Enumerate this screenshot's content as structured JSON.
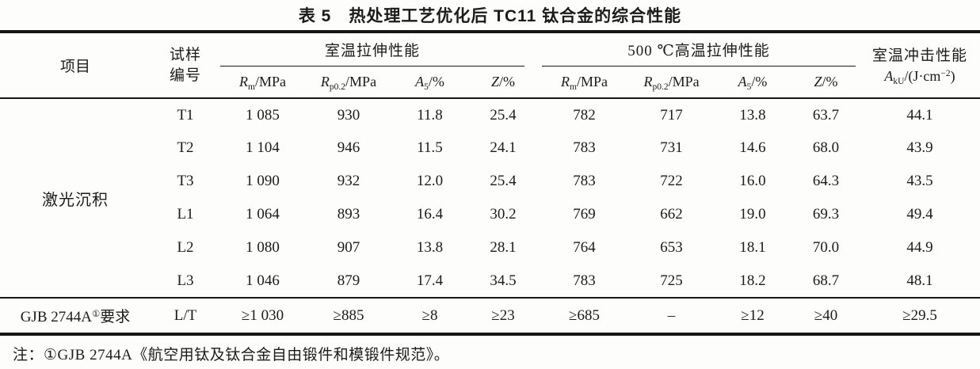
{
  "colors": {
    "text": "#1b1b1b",
    "rule": "#161616",
    "background": "#fdfdfc"
  },
  "title": "表 5　热处理工艺优化后 TC11 钛合金的综合性能",
  "table": {
    "header": {
      "item": "项目",
      "sample_line1": "试样",
      "sample_line2": "编号",
      "group_rt": "室温拉伸性能",
      "group_ht": "500 ℃高温拉伸性能",
      "impact_title": "室温冲击性能",
      "impact_symbol": {
        "var": "A",
        "sub": "kU",
        "unit_pre": "/(J·cm",
        "sup": "−2",
        "unit_post": ")"
      },
      "tensile_cols": [
        {
          "var": "R",
          "sub": "m",
          "unit": "/MPa"
        },
        {
          "var": "R",
          "sub": "p0.2",
          "unit": "/MPa"
        },
        {
          "var": "A",
          "sub": "5",
          "unit": "/%"
        },
        {
          "var": "Z",
          "sub": "",
          "unit": "/%"
        }
      ]
    },
    "group_label": "激光沉积",
    "rows": [
      {
        "id": "T1",
        "values": [
          "1 085",
          "930",
          "11.8",
          "25.4",
          "782",
          "717",
          "13.8",
          "63.7",
          "44.1"
        ]
      },
      {
        "id": "T2",
        "values": [
          "1 104",
          "946",
          "11.5",
          "24.1",
          "783",
          "731",
          "14.6",
          "68.0",
          "43.9"
        ]
      },
      {
        "id": "T3",
        "values": [
          "1 090",
          "932",
          "12.0",
          "25.4",
          "783",
          "722",
          "16.0",
          "64.3",
          "43.5"
        ]
      },
      {
        "id": "L1",
        "values": [
          "1 064",
          "893",
          "16.4",
          "30.2",
          "769",
          "662",
          "19.0",
          "69.3",
          "49.4"
        ]
      },
      {
        "id": "L2",
        "values": [
          "1 080",
          "907",
          "13.8",
          "28.1",
          "764",
          "653",
          "18.1",
          "70.0",
          "44.9"
        ]
      },
      {
        "id": "L3",
        "values": [
          "1 046",
          "879",
          "17.4",
          "34.5",
          "783",
          "725",
          "18.2",
          "68.7",
          "48.1"
        ]
      }
    ],
    "requirement_row": {
      "label_prefix": "GJB 2744A",
      "label_sup": "①",
      "label_suffix": "要求",
      "id": "L/T",
      "values": [
        "≥1 030",
        "≥885",
        "≥8",
        "≥23",
        "≥685",
        "–",
        "≥12",
        "≥40",
        "≥29.5"
      ]
    }
  },
  "note": "注：①GJB 2744A《航空用钛及钛合金自由锻件和模锻件规范》。"
}
